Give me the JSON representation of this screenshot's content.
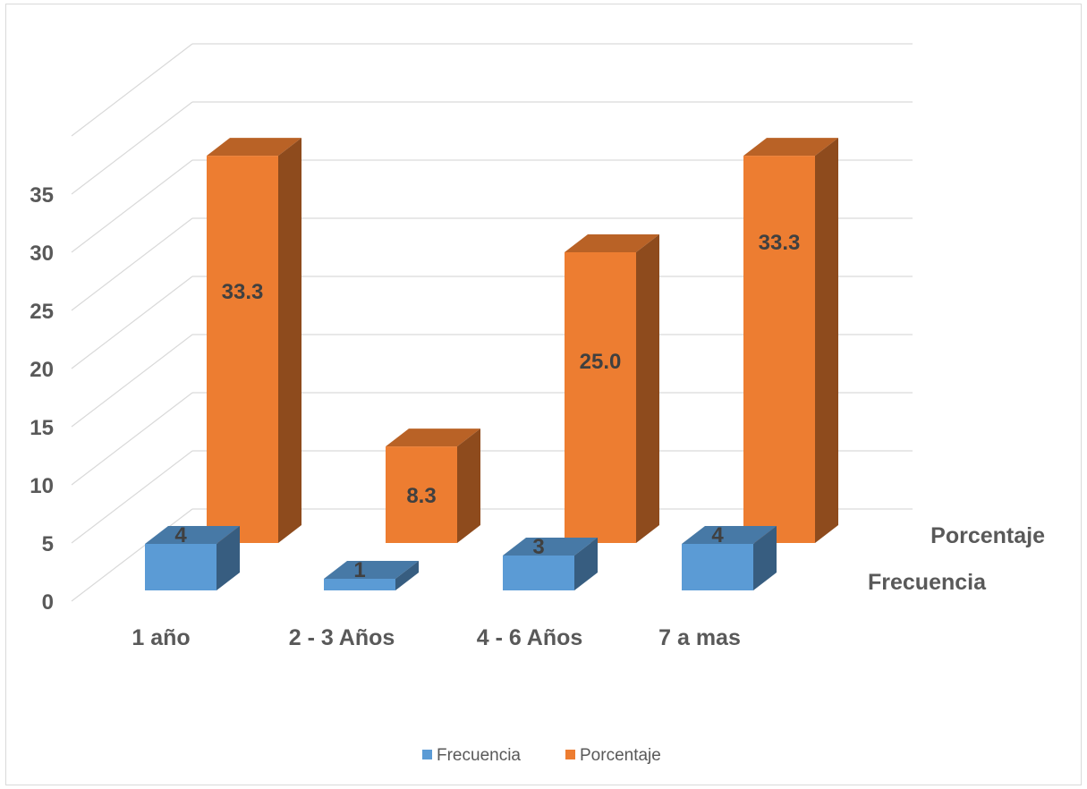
{
  "chart_data": {
    "type": "bar",
    "categories": [
      "1 año",
      "2 - 3 Años",
      "4 - 6 Años",
      "7 a mas"
    ],
    "series": [
      {
        "name": "Frecuencia",
        "values": [
          4,
          1,
          3,
          4
        ],
        "labels": [
          "4",
          "1",
          "3",
          "4"
        ],
        "color": "#5b9bd5"
      },
      {
        "name": "Porcentaje",
        "values": [
          33.3,
          8.3,
          25.0,
          33.3
        ],
        "labels": [
          "33.3",
          "8.3",
          "25.0",
          "33.3"
        ],
        "color": "#ed7d31"
      }
    ],
    "ylim": [
      0,
      35
    ],
    "yticks": [
      "0",
      "5",
      "10",
      "15",
      "20",
      "25",
      "30",
      "35"
    ],
    "depth_labels": [
      "Frecuencia",
      "Porcentaje"
    ],
    "grid": true,
    "legend_position": "bottom",
    "title": "",
    "xlabel": "",
    "ylabel": ""
  }
}
